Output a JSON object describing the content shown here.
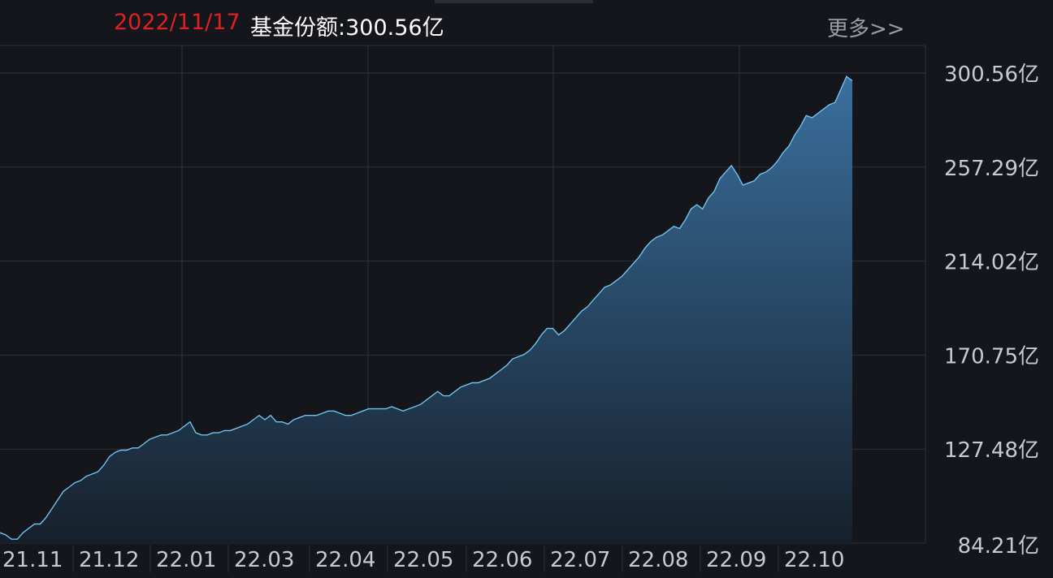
{
  "header": {
    "date": "2022/11/17",
    "label_prefix": "基金份额:",
    "label_value": "300.56亿",
    "more": "更多>>"
  },
  "colors": {
    "background": "#14161b",
    "grid": "#2e3137",
    "line": "#6ec4f0",
    "area_top": "#3a6f9e",
    "area_bottom": "#16202b",
    "date_red": "#e02020",
    "axis_text": "#c8cacf"
  },
  "chart_data": {
    "type": "area",
    "unit": "亿",
    "yticks": [
      84.21,
      127.48,
      170.75,
      214.02,
      257.29,
      300.56
    ],
    "ytick_labels": [
      "84.21亿",
      "127.48亿",
      "170.75亿",
      "214.02亿",
      "257.29亿",
      "300.56亿"
    ],
    "ylim": [
      84.21,
      300.56
    ],
    "xtick_labels": [
      "21.11",
      "21.12",
      "22.01",
      "22.03",
      "22.04",
      "22.05",
      "22.06",
      "22.07",
      "22.08",
      "22.09",
      "22.10"
    ],
    "grid": true,
    "series": [
      {
        "values": [
          89,
          88,
          86,
          86,
          89,
          91,
          93,
          93,
          96,
          100,
          104,
          108,
          110,
          112,
          113,
          115,
          116,
          117,
          120,
          124,
          126,
          127,
          127,
          128,
          128,
          130,
          132,
          133,
          134,
          134,
          135,
          136,
          138,
          140,
          135,
          134,
          134,
          135,
          135,
          136,
          136,
          137,
          138,
          139,
          141,
          143,
          141,
          143,
          140,
          140,
          139,
          141,
          142,
          143,
          143,
          143,
          144,
          145,
          145,
          144,
          143,
          143,
          144,
          145,
          146,
          146,
          146,
          146,
          147,
          146,
          145,
          146,
          147,
          148,
          150,
          152,
          154,
          152,
          152,
          154,
          156,
          157,
          158,
          158,
          159,
          160,
          162,
          164,
          166,
          169,
          170,
          171,
          173,
          176,
          180,
          183,
          183,
          180,
          182,
          185,
          188,
          191,
          193,
          196,
          199,
          202,
          203,
          205,
          207,
          210,
          213,
          216,
          220,
          223,
          225,
          226,
          228,
          230,
          229,
          233,
          238,
          240,
          238,
          243,
          246,
          252,
          255,
          258,
          254,
          249,
          250,
          251,
          254,
          255,
          257,
          260,
          264,
          267,
          272,
          276,
          281,
          280,
          282,
          284,
          286,
          287,
          293,
          299,
          297
        ]
      }
    ]
  }
}
